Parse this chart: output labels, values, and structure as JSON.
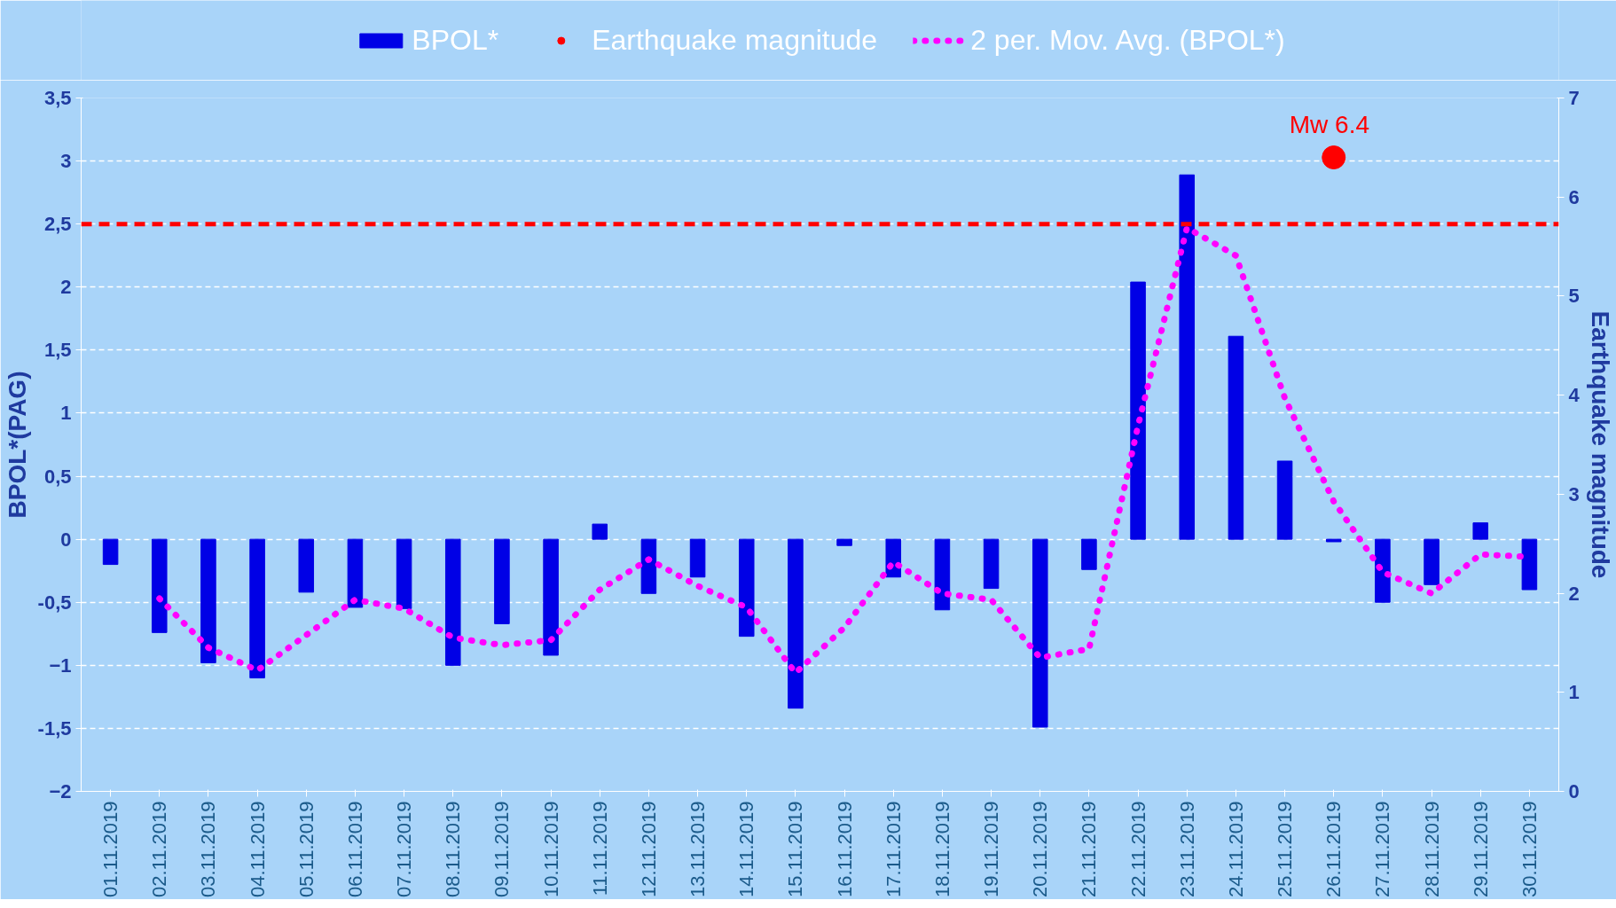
{
  "chart_data": {
    "type": "bar",
    "xlabel": null,
    "ylabel": "BPOL*(PAG)",
    "y2label": "Earthquake magnitude",
    "categories": [
      "01.11.2019",
      "02.11.2019",
      "03.11.2019",
      "04.11.2019",
      "05.11.2019",
      "06.11.2019",
      "07.11.2019",
      "08.11.2019",
      "09.11.2019",
      "10.11.2019",
      "11.11.2019",
      "12.11.2019",
      "13.11.2019",
      "14.11.2019",
      "15.11.2019",
      "16.11.2019",
      "17.11.2019",
      "18.11.2019",
      "19.11.2019",
      "20.11.2019",
      "21.11.2019",
      "22.11.2019",
      "23.11.2019",
      "24.11.2019",
      "25.11.2019",
      "26.11.2019",
      "27.11.2019",
      "28.11.2019",
      "29.11.2019",
      "30.11.2019"
    ],
    "series": [
      {
        "name": "BPOL*",
        "color": "#0000e6",
        "values": [
          -0.2,
          -0.74,
          -0.98,
          -1.1,
          -0.42,
          -0.54,
          -0.55,
          -1.0,
          -0.67,
          -0.92,
          0.12,
          -0.43,
          -0.3,
          -0.77,
          -1.34,
          -0.05,
          -0.3,
          -0.56,
          -0.39,
          -1.49,
          -0.24,
          2.04,
          2.89,
          1.61,
          0.62,
          -0.02,
          -0.5,
          -0.36,
          0.13,
          -0.4
        ]
      },
      {
        "name": "Earthquake magnitude",
        "type": "scatter",
        "axis": "y2",
        "color": "#ff0000",
        "marker": "circle",
        "values": [
          null,
          null,
          null,
          null,
          null,
          null,
          null,
          null,
          null,
          null,
          null,
          null,
          null,
          null,
          null,
          null,
          null,
          null,
          null,
          null,
          null,
          null,
          null,
          null,
          null,
          6.4,
          null,
          null,
          null,
          null
        ]
      },
      {
        "name": "2 per. Mov. Avg. (BPOL*)",
        "type": "line",
        "line_style": "dotted",
        "color": "#ff00ff",
        "values": [
          null,
          -0.47,
          -0.86,
          -1.04,
          -0.76,
          -0.48,
          -0.55,
          -0.78,
          -0.84,
          -0.8,
          -0.4,
          -0.16,
          -0.37,
          -0.54,
          -1.06,
          -0.7,
          -0.18,
          -0.43,
          -0.48,
          -0.94,
          -0.87,
          0.9,
          2.47,
          2.25,
          1.12,
          0.3,
          -0.26,
          -0.43,
          -0.12,
          -0.14
        ]
      }
    ],
    "ylim": [
      -2,
      3.5
    ],
    "yticks": [
      -2,
      {
        "value": -1.5,
        "label": "-1,5"
      },
      -1,
      {
        "value": -0.5,
        "label": "-0,5"
      },
      0,
      {
        "value": 0.5,
        "label": "0,5"
      },
      1,
      {
        "value": 1.5,
        "label": "1,5"
      },
      2,
      {
        "value": 2.5,
        "label": "2,5"
      },
      3,
      {
        "value": 3.5,
        "label": "3,5"
      }
    ],
    "y2lim": [
      0,
      7
    ],
    "y2ticks": [
      0,
      1,
      2,
      3,
      4,
      5,
      6,
      7
    ],
    "ref_lines": [
      {
        "axis": "y",
        "value": 2.5,
        "color": "#ff0000",
        "line_style": "dashed"
      }
    ],
    "annotations": [
      "Mw 6.4"
    ],
    "grid": "y",
    "legend": "top"
  }
}
